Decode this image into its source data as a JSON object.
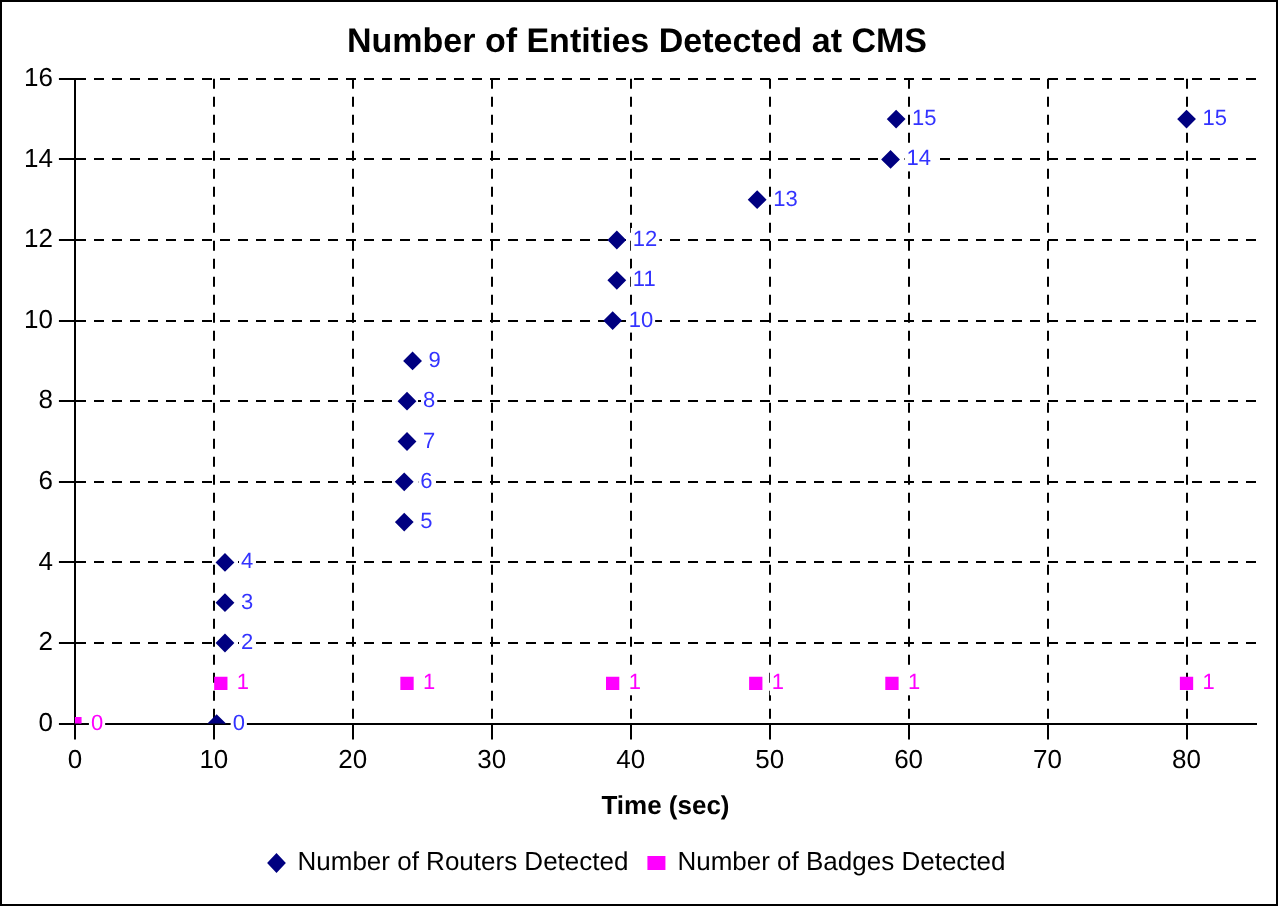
{
  "chart_data": {
    "type": "scatter",
    "title": "Number of Entities Detected at CMS",
    "xlabel": "Time (sec)",
    "xlim": [
      0,
      85
    ],
    "xticks": [
      0,
      10,
      20,
      30,
      40,
      50,
      60,
      70,
      80
    ],
    "ylim": [
      0,
      16
    ],
    "yticks": [
      0,
      2,
      4,
      6,
      8,
      10,
      12,
      14,
      16
    ],
    "grid": true,
    "legend": "bottom",
    "data_labels": true,
    "series": [
      {
        "name": "Number of Routers Detected",
        "color": "#000080",
        "marker": "diamond",
        "x": [
          10.2,
          10.8,
          10.8,
          10.8,
          23.7,
          23.7,
          23.9,
          23.9,
          24.3,
          38.7,
          39,
          39,
          49.1,
          58.7,
          59.1,
          80
        ],
        "values": [
          0,
          2,
          3,
          4,
          5,
          6,
          7,
          8,
          9,
          10,
          11,
          12,
          13,
          14,
          15,
          15
        ]
      },
      {
        "name": "Number of Badges Detected",
        "color": "#ff00ff",
        "marker": "square",
        "x": [
          0,
          10.5,
          23.9,
          38.7,
          49,
          58.8,
          80
        ],
        "values": [
          0,
          1,
          1,
          1,
          1,
          1,
          1
        ]
      }
    ]
  }
}
